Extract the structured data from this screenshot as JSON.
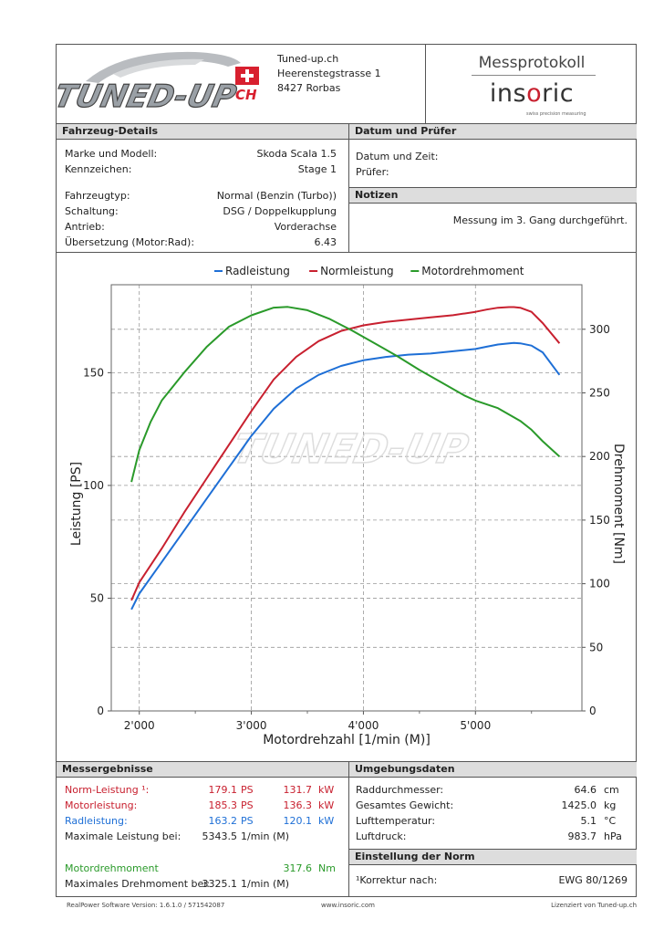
{
  "header": {
    "company": "Tuned-up.ch",
    "street": "Heerenstegstrasse 1",
    "city": "8427 Rorbas",
    "logo_text": "TUNED-UP",
    "logo_suffix": "CH",
    "protocol_title": "Messprotokoll",
    "brand_pre": "ins",
    "brand_o": "o",
    "brand_post": "ric",
    "brand_sub": "swiss precision measuring"
  },
  "vehicle": {
    "title": "Fahrzeug-Details",
    "rows": [
      {
        "label": "Marke und Modell:",
        "value": "Skoda Scala 1.5"
      },
      {
        "label": "Kennzeichen:",
        "value": "Stage 1"
      },
      {
        "label": "Fahrzeugtyp:",
        "value": "Normal (Benzin (Turbo))"
      },
      {
        "label": "Schaltung:",
        "value": "DSG / Doppelkupplung"
      },
      {
        "label": "Antrieb:",
        "value": "Vorderachse"
      },
      {
        "label": "Übersetzung (Motor:Rad):",
        "value": "6.43"
      }
    ]
  },
  "date": {
    "title": "Datum und Prüfer",
    "datetime_label": "Datum und Zeit:",
    "tester_label": "Prüfer:"
  },
  "notes": {
    "title": "Notizen",
    "text": "Messung im 3. Gang durchgeführt."
  },
  "chart_data": {
    "type": "line",
    "title": "",
    "xlabel": "Motordrehzahl [1/min (M)]",
    "ylabel": "Leistung [PS]",
    "y2label": "Drehmoment [Nm]",
    "xlim": [
      1750,
      5950
    ],
    "ylim": [
      0,
      189
    ],
    "y2lim": [
      0,
      335
    ],
    "xticks": [
      2000,
      3000,
      4000,
      5000
    ],
    "xticklabels": [
      "2'000",
      "3'000",
      "4'000",
      "5'000"
    ],
    "yticks": [
      0,
      50,
      100,
      150
    ],
    "y2ticks": [
      0,
      50,
      100,
      150,
      200,
      250,
      300
    ],
    "grid": true,
    "legend_position": "top",
    "series": [
      {
        "name": "Radleistung",
        "color": "#1e6fd6",
        "axis": "left",
        "x": [
          1930,
          2000,
          2200,
          2400,
          2600,
          2800,
          3000,
          3200,
          3400,
          3600,
          3800,
          4000,
          4200,
          4400,
          4600,
          4800,
          5000,
          5100,
          5200,
          5300,
          5343,
          5400,
          5500,
          5600,
          5750
        ],
        "y": [
          45,
          52,
          66,
          80,
          94,
          108,
          122,
          134,
          143,
          149,
          153,
          155.5,
          157,
          158,
          158.5,
          159.5,
          160.5,
          161.5,
          162.5,
          163,
          163.2,
          163,
          162,
          159,
          149
        ]
      },
      {
        "name": "Normleistung",
        "color": "#c8202f",
        "axis": "left",
        "x": [
          1930,
          2000,
          2200,
          2400,
          2600,
          2800,
          3000,
          3200,
          3400,
          3600,
          3800,
          4000,
          4200,
          4400,
          4600,
          4800,
          5000,
          5100,
          5200,
          5300,
          5343,
          5400,
          5500,
          5600,
          5750
        ],
        "y": [
          49,
          57,
          72,
          88,
          103,
          118,
          133,
          147,
          157,
          164,
          168.5,
          171,
          172.5,
          173.5,
          174.5,
          175.5,
          177,
          178,
          178.8,
          179.1,
          179.1,
          178.8,
          177,
          172,
          163
        ]
      },
      {
        "name": "Motordrehmoment",
        "color": "#2a9a2a",
        "axis": "right",
        "x": [
          1930,
          2000,
          2100,
          2200,
          2400,
          2600,
          2800,
          3000,
          3200,
          3325,
          3500,
          3700,
          3900,
          4100,
          4300,
          4500,
          4700,
          4900,
          5000,
          5200,
          5400,
          5500,
          5600,
          5750
        ],
        "y": [
          180,
          205,
          227,
          244,
          266,
          286,
          302,
          311,
          317,
          317.6,
          315,
          308,
          299,
          289,
          279,
          268,
          258,
          248,
          244,
          238,
          228,
          221,
          212,
          200
        ]
      }
    ],
    "watermark": "TUNED-UP"
  },
  "results": {
    "title": "Messergebnisse",
    "rows": [
      {
        "label": "Norm-Leistung ¹:",
        "ps": "179.1",
        "ps_unit": "PS",
        "kw": "131.7",
        "kw_unit": "kW"
      },
      {
        "label": "Motorleistung:",
        "ps": "185.3",
        "ps_unit": "PS",
        "kw": "136.3",
        "kw_unit": "kW"
      },
      {
        "label": "Radleistung:",
        "ps": "163.2",
        "ps_unit": "PS",
        "kw": "120.1",
        "kw_unit": "kW"
      }
    ],
    "max_power_label": "Maximale Leistung bei:",
    "max_power_rpm": "5343.5",
    "rpm_unit": "1/min (M)",
    "torque_label": "Motordrehmoment",
    "torque_value": "317.6",
    "torque_unit": "Nm",
    "max_torque_label": "Maximales Drehmoment bei:",
    "max_torque_rpm": "3325.1",
    "max_torque_unit": "1/min (M)"
  },
  "environment": {
    "title": "Umgebungsdaten",
    "rows": [
      {
        "label": "Raddurchmesser:",
        "value": "64.6",
        "unit": "cm"
      },
      {
        "label": "Gesamtes Gewicht:",
        "value": "1425.0",
        "unit": "kg"
      },
      {
        "label": "Lufttemperatur:",
        "value": "5.1",
        "unit": "°C"
      },
      {
        "label": "Luftdruck:",
        "value": "983.7",
        "unit": "hPa"
      }
    ]
  },
  "norm": {
    "title": "Einstellung der Norm",
    "label": "¹Korrektur nach:",
    "value": "EWG 80/1269"
  },
  "footer": {
    "software": "RealPower Software Version: 1.6.1.0 / 571542087",
    "website": "www.insoric.com",
    "license": "Lizenziert von Tuned-up.ch"
  }
}
